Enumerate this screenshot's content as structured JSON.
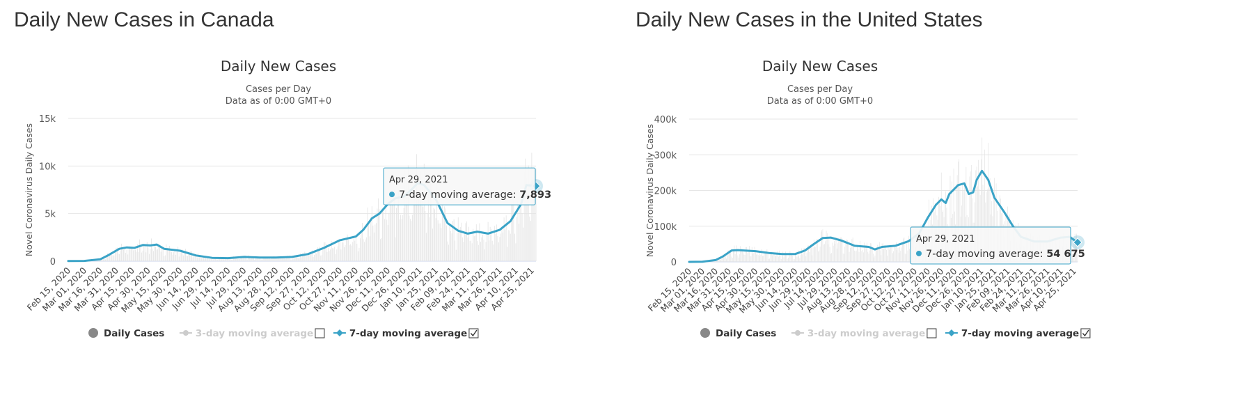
{
  "colors": {
    "line": "#3aa3c7",
    "bars": "#e4e4e4",
    "grid": "#e6e6e6",
    "text": "#333333",
    "legend_disabled": "#cccccc",
    "tooltip_bg": "#f7f7f7",
    "tooltip_border": "#3aa3c7"
  },
  "panels": [
    {
      "heading": "Daily New Cases in Canada",
      "tooltip": {
        "date": "Apr 29, 2021",
        "label": "7-day moving average: ",
        "value": "7,893"
      },
      "legend": [
        {
          "label": "Daily Cases",
          "icon": "circle-marker-icon",
          "state": "active",
          "checkbox": null
        },
        {
          "label": "3-day moving average",
          "icon": "line-marker-icon",
          "state": "disabled",
          "checkbox": "unchecked"
        },
        {
          "label": "7-day moving average",
          "icon": "line-diamond-marker-icon",
          "state": "active",
          "checkbox": "checked"
        }
      ],
      "chart_data": {
        "type": "line",
        "title": "Daily New Cases",
        "subtitle": [
          "Cases per Day",
          "Data as of 0:00 GMT+0"
        ],
        "ylabel": "Novel Coronavirus Daily Cases",
        "xlabel": "",
        "ylim": [
          0,
          15000
        ],
        "y_ticks": [
          0,
          5000,
          10000,
          15000
        ],
        "y_tick_labels": [
          "0",
          "5k",
          "10k",
          "15k"
        ],
        "x_tick_labels": [
          "Feb 15, 2020",
          "Mar 01, 2020",
          "Mar 16, 2020",
          "Mar 31, 2020",
          "Apr 15, 2020",
          "Apr 30, 2020",
          "May 15, 2020",
          "May 30, 2020",
          "Jun 14, 2020",
          "Jun 29, 2020",
          "Jul 14, 2020",
          "Jul 29, 2020",
          "Aug 13, 2020",
          "Aug 28, 2020",
          "Sep 12, 2020",
          "Sep 27, 2020",
          "Oct 12, 2020",
          "Oct 27, 2020",
          "Nov 11, 2020",
          "Nov 26, 2020",
          "Dec 11, 2020",
          "Dec 26, 2020",
          "Jan 10, 2021",
          "Jan 25, 2021",
          "Feb 09, 2021",
          "Feb 24, 2021",
          "Mar 11, 2021",
          "Mar 26, 2021",
          "Apr 10, 2021",
          "Apr 25, 2021"
        ],
        "x_range": [
          "Feb 15, 2020",
          "Apr 29, 2021"
        ],
        "grid": true,
        "series": [
          {
            "name": "7-day moving average",
            "x": [
              "Feb 15, 2020",
              "Mar 01, 2020",
              "Mar 16, 2020",
              "Mar 24, 2020",
              "Apr 03, 2020",
              "Apr 10, 2020",
              "Apr 17, 2020",
              "Apr 25, 2020",
              "May 02, 2020",
              "May 08, 2020",
              "May 15, 2020",
              "May 30, 2020",
              "Jun 14, 2020",
              "Jun 29, 2020",
              "Jul 14, 2020",
              "Jul 29, 2020",
              "Aug 13, 2020",
              "Aug 28, 2020",
              "Sep 12, 2020",
              "Sep 27, 2020",
              "Oct 12, 2020",
              "Oct 27, 2020",
              "Nov 11, 2020",
              "Nov 18, 2020",
              "Nov 26, 2020",
              "Dec 03, 2020",
              "Dec 11, 2020",
              "Dec 18, 2020",
              "Dec 26, 2020",
              "Jan 02, 2021",
              "Jan 08, 2021",
              "Jan 14, 2021",
              "Jan 25, 2021",
              "Feb 05, 2021",
              "Feb 15, 2021",
              "Feb 24, 2021",
              "Mar 05, 2021",
              "Mar 15, 2021",
              "Mar 26, 2021",
              "Apr 05, 2021",
              "Apr 15, 2021",
              "Apr 20, 2021",
              "Apr 29, 2021"
            ],
            "y": [
              20,
              30,
              200,
              650,
              1300,
              1450,
              1400,
              1700,
              1650,
              1750,
              1300,
              1100,
              600,
              350,
              320,
              450,
              380,
              380,
              450,
              750,
              1400,
              2200,
              2600,
              3300,
              4500,
              5000,
              6000,
              6600,
              6800,
              7500,
              8200,
              8000,
              6500,
              4000,
              3200,
              2900,
              3100,
              2900,
              3300,
              4200,
              6000,
              8000,
              7893
            ]
          }
        ],
        "daily_cases_bars": "thin gray bars showing daily counts; peaks near 11,000 in early Jan 2021"
      }
    },
    {
      "heading": "Daily New Cases in the United States",
      "tooltip": {
        "date": "Apr 29, 2021",
        "label": "7-day moving average: ",
        "value": "54 675"
      },
      "legend": [
        {
          "label": "Daily Cases",
          "icon": "circle-marker-icon",
          "state": "active",
          "checkbox": null
        },
        {
          "label": "3-day moving average",
          "icon": "line-marker-icon",
          "state": "disabled",
          "checkbox": "unchecked"
        },
        {
          "label": "7-day moving average",
          "icon": "line-diamond-marker-icon",
          "state": "active",
          "checkbox": "checked"
        }
      ],
      "chart_data": {
        "type": "line",
        "title": "Daily New Cases",
        "subtitle": [
          "Cases per Day",
          "Data as of 0:00 GMT+0"
        ],
        "ylabel": "Novel Coronavirus Daily Cases",
        "xlabel": "",
        "ylim": [
          0,
          400000
        ],
        "y_ticks": [
          0,
          100000,
          200000,
          300000,
          400000
        ],
        "y_tick_labels": [
          "0",
          "100k",
          "200k",
          "300k",
          "400k"
        ],
        "x_tick_labels": [
          "Feb 15, 2020",
          "Mar 01, 2020",
          "Mar 16, 2020",
          "Mar 31, 2020",
          "Apr 15, 2020",
          "Apr 30, 2020",
          "May 15, 2020",
          "May 30, 2020",
          "Jun 14, 2020",
          "Jun 29, 2020",
          "Jul 14, 2020",
          "Jul 29, 2020",
          "Aug 13, 2020",
          "Aug 28, 2020",
          "Sep 12, 2020",
          "Sep 27, 2020",
          "Oct 12, 2020",
          "Oct 27, 2020",
          "Nov 11, 2020",
          "Nov 26, 2020",
          "Dec 11, 2020",
          "Dec 26, 2020",
          "Jan 10, 2021",
          "Jan 25, 2021",
          "Feb 09, 2021",
          "Feb 24, 2021",
          "Mar 11, 2021",
          "Mar 26, 2021",
          "Apr 10, 2021",
          "Apr 25, 2021"
        ],
        "x_range": [
          "Feb 15, 2020",
          "Apr 29, 2021"
        ],
        "grid": true,
        "series": [
          {
            "name": "7-day moving average",
            "x": [
              "Feb 15, 2020",
              "Mar 01, 2020",
              "Mar 16, 2020",
              "Mar 24, 2020",
              "Apr 03, 2020",
              "Apr 10, 2020",
              "Apr 30, 2020",
              "May 15, 2020",
              "May 30, 2020",
              "Jun 14, 2020",
              "Jun 25, 2020",
              "Jul 05, 2020",
              "Jul 15, 2020",
              "Jul 24, 2020",
              "Aug 05, 2020",
              "Aug 20, 2020",
              "Sep 05, 2020",
              "Sep 12, 2020",
              "Sep 20, 2020",
              "Oct 05, 2020",
              "Oct 20, 2020",
              "Nov 01, 2020",
              "Nov 11, 2020",
              "Nov 20, 2020",
              "Nov 26, 2020",
              "Dec 01, 2020",
              "Dec 05, 2020",
              "Dec 15, 2020",
              "Dec 22, 2020",
              "Dec 27, 2020",
              "Jan 01, 2021",
              "Jan 05, 2021",
              "Jan 11, 2021",
              "Jan 18, 2021",
              "Jan 25, 2021",
              "Feb 05, 2021",
              "Feb 15, 2021",
              "Feb 24, 2021",
              "Mar 11, 2021",
              "Mar 26, 2021",
              "Apr 10, 2021",
              "Apr 20, 2021",
              "Apr 29, 2021"
            ],
            "y": [
              0,
              500,
              5000,
              15000,
              32000,
              33000,
              30000,
              25000,
              22000,
              22000,
              32000,
              50000,
              67000,
              68000,
              60000,
              45000,
              42000,
              35000,
              42000,
              45000,
              58000,
              80000,
              125000,
              160000,
              175000,
              165000,
              190000,
              215000,
              220000,
              190000,
              195000,
              230000,
              255000,
              230000,
              180000,
              140000,
              100000,
              70000,
              57000,
              57000,
              68000,
              70000,
              54675
            ]
          }
        ],
        "daily_cases_bars": "thin gray bars showing daily counts; peaks near 300,000 in early Jan 2021"
      }
    }
  ]
}
